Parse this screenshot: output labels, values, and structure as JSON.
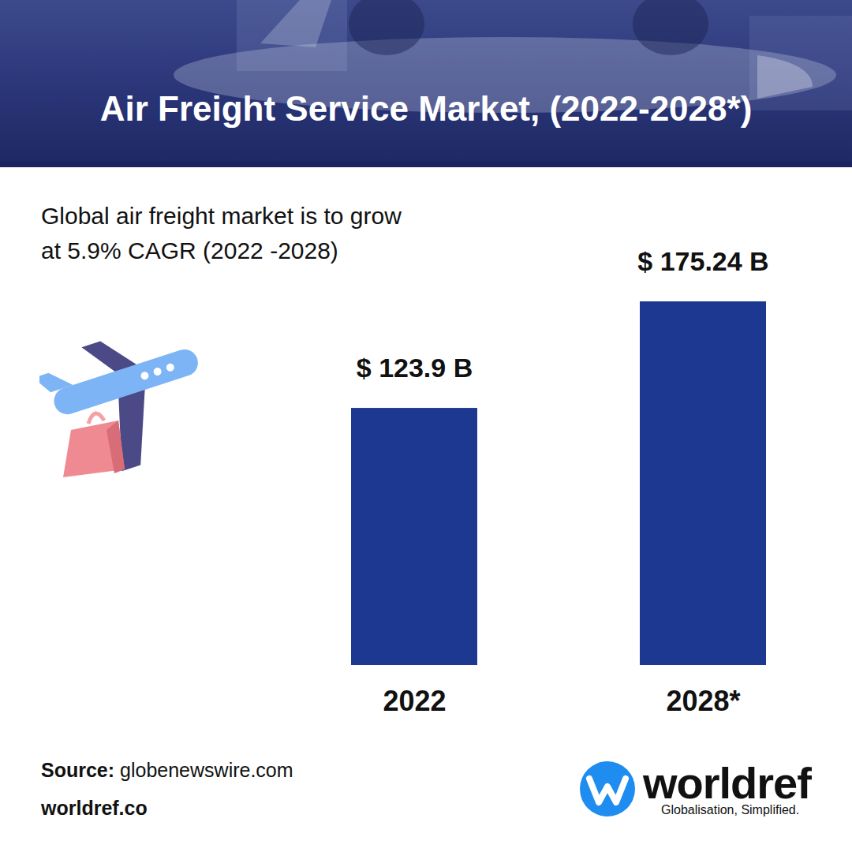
{
  "chart_data": {
    "type": "bar",
    "title": "Air Freight Service Market, (2022-2028*)",
    "subtitle": "Global air freight market is to grow at 5.9% CAGR (2022 -2028)",
    "categories": [
      "2022",
      "2028*"
    ],
    "values": [
      123.9,
      175.24
    ],
    "value_labels": [
      "$ 123.9 B",
      "$ 175.24 B"
    ],
    "data_labels": true,
    "color": "#1d3891",
    "ylim": [
      0,
      175.24
    ],
    "tick_labels": "x",
    "source_label": "Source:",
    "source": "globenewswire.com",
    "website": "worldref.co",
    "logo": {
      "name": "worldref",
      "tagline": "Globalisation, Simplified."
    }
  }
}
